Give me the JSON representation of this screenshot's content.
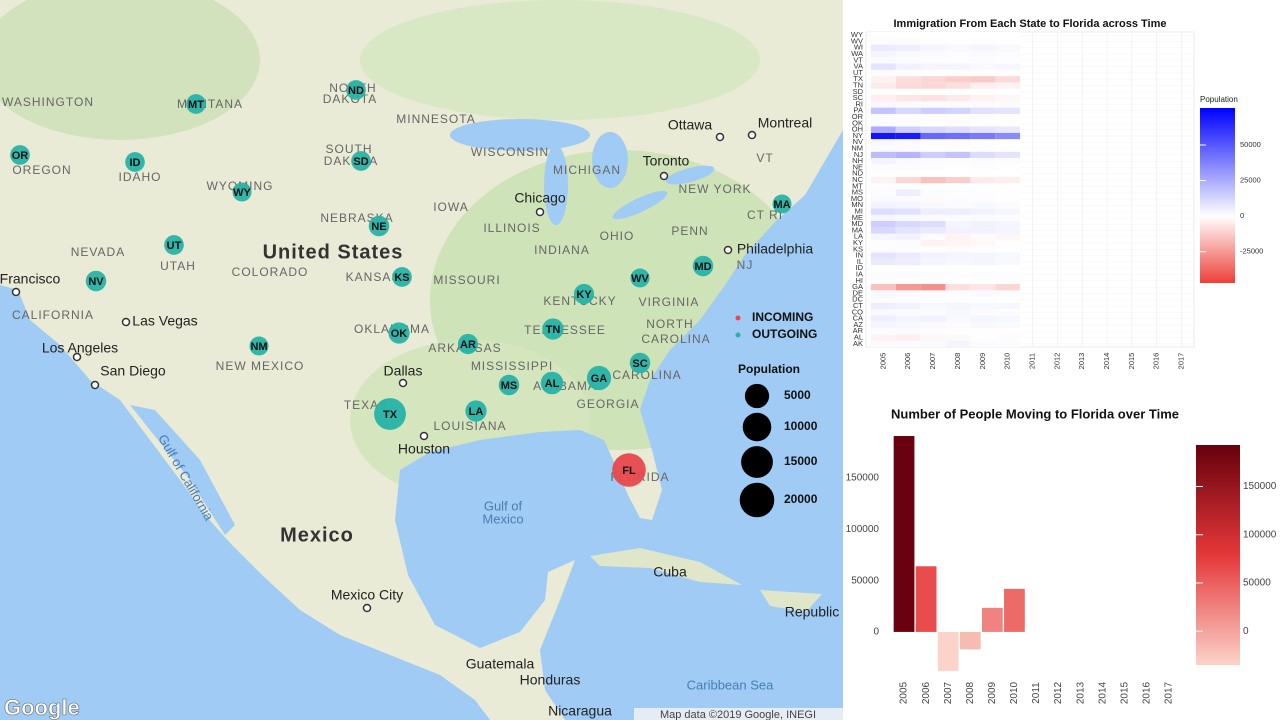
{
  "chart_data": [
    {
      "type": "bubble_map",
      "labels": [
        "WASHINGTON",
        "OREGON",
        "IDAHO",
        "MONTANA",
        "WYOMING",
        "NEVADA",
        "UTAH",
        "COLORADO",
        "CALIFORNIA",
        "NEW MEXICO",
        "NORTH",
        "DAKOTA",
        "SOUTH",
        "DAKOTA",
        "NEBRASKA",
        "KANSAS",
        "OKLAHOMA",
        "TEXAS",
        "MINNESOTA",
        "IOWA",
        "MISSOURI",
        "ARKANSAS",
        "MISSISSIPPI",
        "LOUISIANA",
        "ALABAMA",
        "GEORGIA",
        "TENNESSEE",
        "KENTUCKY",
        "ILLINOIS",
        "INDIANA",
        "OHIO",
        "WISCONSIN",
        "MICHIGAN",
        "VIRGINIA",
        "NORTH",
        "CAROLINA",
        "CAROLINA",
        "NEW YORK",
        "PENN",
        "NJ",
        "VT",
        "CT RI",
        "FLORIDA",
        "United States",
        "Mexico",
        "Cuba",
        "Guatemala",
        "Honduras",
        "Nicaragua",
        "Republic",
        "Mexico City",
        "Ottawa",
        "Montreal",
        "Toronto",
        "Chicago",
        "Philadelphia",
        "Dallas",
        "Houston",
        "Las Vegas",
        "Los Angeles",
        "San Diego",
        "Francisco",
        "Gulf of",
        "Mexico",
        "Gulf of California",
        "Caribbean Sea"
      ],
      "series": [
        {
          "name": "INCOMING",
          "color": "#e8484c",
          "categories": [
            "FL"
          ],
          "values": [
            18000
          ]
        },
        {
          "name": "OUTGOING",
          "color": "#27b3a7",
          "categories": [
            "OR",
            "ID",
            "MT",
            "ND",
            "SD",
            "WY",
            "NE",
            "UT",
            "NV",
            "KS",
            "NM",
            "OK",
            "AR",
            "TX",
            "LA",
            "MS",
            "AL",
            "GA",
            "TN",
            "KY",
            "WV",
            "MD",
            "SC",
            "MA"
          ],
          "values": [
            1500,
            1500,
            1500,
            1500,
            1500,
            1200,
            2000,
            1500,
            2000,
            1500,
            1200,
            2500,
            1800,
            15000,
            2500,
            2000,
            3500,
            5000,
            2500,
            1800,
            1200,
            2000,
            2000,
            1200
          ]
        }
      ],
      "size_legend": {
        "title": "Population",
        "values": [
          5000,
          10000,
          15000,
          20000
        ]
      },
      "attribution": "Map data ©2019 Google, INEGI",
      "logo": "Google"
    },
    {
      "type": "heatmap",
      "title": "Immigration From Each State to Florida across Time",
      "categories": [
        "AK",
        "AL",
        "AR",
        "AZ",
        "CA",
        "CO",
        "CT",
        "DC",
        "DE",
        "GA",
        "HI",
        "IA",
        "ID",
        "IL",
        "IN",
        "KS",
        "KY",
        "LA",
        "MA",
        "MD",
        "ME",
        "MI",
        "MN",
        "MO",
        "MS",
        "MT",
        "NC",
        "ND",
        "NE",
        "NH",
        "NJ",
        "NM",
        "NV",
        "NY",
        "OH",
        "OK",
        "OR",
        "PA",
        "RI",
        "SC",
        "SD",
        "TN",
        "TX",
        "UT",
        "VA",
        "VT",
        "WA",
        "WI",
        "WV",
        "WY"
      ],
      "x": [
        2005,
        2006,
        2007,
        2008,
        2009,
        2010
      ],
      "values": [
        [
          800,
          500,
          1200,
          3000,
          1500,
          1000
        ],
        [
          -3000,
          -4000,
          -2000,
          -1500,
          -500,
          -1000
        ],
        [
          1000,
          800,
          500,
          -500,
          300,
          200
        ],
        [
          3000,
          2000,
          1500,
          1000,
          2000,
          1500
        ],
        [
          5000,
          3000,
          4000,
          2000,
          3000,
          2500
        ],
        [
          2000,
          1500,
          1000,
          2500,
          1000,
          1000
        ],
        [
          5000,
          4000,
          2000,
          3000,
          2000,
          2500
        ],
        [
          1000,
          500,
          200,
          -200,
          300,
          100
        ],
        [
          2000,
          1500,
          1000,
          800,
          1500,
          1000
        ],
        [
          -15000,
          -25000,
          -27000,
          -8000,
          -6000,
          -10000
        ],
        [
          500,
          300,
          200,
          100,
          300,
          200
        ],
        [
          1000,
          1500,
          800,
          500,
          800,
          600
        ],
        [
          300,
          200,
          100,
          -200,
          100,
          100
        ],
        [
          6000,
          5000,
          3000,
          2500,
          3000,
          2000
        ],
        [
          8000,
          6000,
          4000,
          3000,
          3000,
          2500
        ],
        [
          1000,
          800,
          500,
          -1000,
          500,
          300
        ],
        [
          500,
          1000,
          -3000,
          -2500,
          -1500,
          -500
        ],
        [
          3000,
          4000,
          1000,
          -3000,
          -1000,
          -2000
        ],
        [
          12000,
          8000,
          6000,
          4000,
          4000,
          3000
        ],
        [
          15000,
          12000,
          10000,
          3000,
          4000,
          3000
        ],
        [
          3000,
          2000,
          1500,
          1000,
          1500,
          1000
        ],
        [
          10000,
          9000,
          5000,
          5000,
          4000,
          3000
        ],
        [
          4000,
          3000,
          2000,
          1500,
          2000,
          1500
        ],
        [
          2000,
          1500,
          -1000,
          1000,
          500,
          300
        ],
        [
          1000,
          5000,
          1000,
          500,
          500,
          200
        ],
        [
          500,
          300,
          200,
          -100,
          200,
          100
        ],
        [
          -3000,
          -10000,
          -15000,
          -12000,
          -5000,
          -4000
        ],
        [
          300,
          200,
          100,
          100,
          200,
          100
        ],
        [
          1000,
          800,
          500,
          300,
          600,
          400
        ],
        [
          3000,
          2000,
          1500,
          1000,
          1500,
          1000
        ],
        [
          20000,
          22000,
          15000,
          18000,
          10000,
          8000
        ],
        [
          1000,
          800,
          500,
          300,
          600,
          400
        ],
        [
          2000,
          1500,
          1000,
          -1000,
          500,
          300
        ],
        [
          70000,
          68000,
          45000,
          43000,
          40000,
          35000
        ],
        [
          25000,
          15000,
          12000,
          10000,
          8000,
          7000
        ],
        [
          1000,
          800,
          -500,
          -1000,
          300,
          200
        ],
        [
          1000,
          500,
          500,
          300,
          500,
          300
        ],
        [
          18000,
          12000,
          15000,
          13000,
          9000,
          8000
        ],
        [
          2000,
          1500,
          1000,
          800,
          1200,
          800
        ],
        [
          -4000,
          -6000,
          -7000,
          -5000,
          -3000,
          -2000
        ],
        [
          300,
          200,
          100,
          100,
          200,
          100
        ],
        [
          -5000,
          -9000,
          -10000,
          -8000,
          -4000,
          -3000
        ],
        [
          -3000,
          -8000,
          -10000,
          -12000,
          -13000,
          -9000
        ],
        [
          800,
          500,
          300,
          200,
          400,
          300
        ],
        [
          8000,
          4000,
          3000,
          3000,
          2000,
          2500
        ],
        [
          1500,
          1000,
          800,
          500,
          800,
          500
        ],
        [
          3000,
          2000,
          1500,
          1000,
          1500,
          1000
        ],
        [
          6000,
          5000,
          3000,
          2000,
          3000,
          2000
        ],
        [
          1000,
          800,
          500,
          300,
          600,
          400
        ],
        [
          200,
          100,
          100,
          50,
          100,
          80
        ]
      ],
      "xlim": [
        2004.3,
        2017.5
      ],
      "xticks": [
        2005,
        2006,
        2007,
        2008,
        2009,
        2010,
        2011,
        2012,
        2013,
        2014,
        2015,
        2016,
        2017
      ],
      "legend_title": "Population",
      "clim": [
        -47000,
        76000
      ],
      "cticks": [
        -25000,
        0,
        25000,
        50000
      ],
      "colors": [
        "#ee3f38",
        "#ffffff",
        "#0000ff"
      ]
    },
    {
      "type": "bar",
      "title": "Number of People Moving to Florida over Time",
      "categories": [
        "2005",
        "2006",
        "2007",
        "2008",
        "2009",
        "2010",
        "2011",
        "2012",
        "2013",
        "2014",
        "2015",
        "2016",
        "2017"
      ],
      "values": [
        191000,
        64000,
        -38000,
        -17000,
        23500,
        42000,
        null,
        null,
        null,
        null,
        null,
        null,
        null
      ],
      "ylim": [
        -42000,
        192000
      ],
      "yticks": [
        0,
        50000,
        100000,
        150000
      ],
      "clim": [
        -35000,
        193000
      ],
      "cticks": [
        0,
        50000,
        100000,
        150000
      ],
      "colors": [
        "#fbd3c9",
        "#e5383a",
        "#67000d"
      ]
    }
  ]
}
